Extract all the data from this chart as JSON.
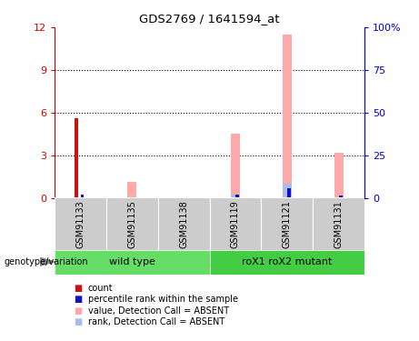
{
  "title": "GDS2769 / 1641594_at",
  "samples": [
    "GSM91133",
    "GSM91135",
    "GSM91138",
    "GSM91119",
    "GSM91121",
    "GSM91131"
  ],
  "count_values": [
    5.6,
    0,
    0,
    0,
    0,
    0
  ],
  "percentile_values": [
    0.25,
    0,
    0,
    0.2,
    0.7,
    0.15
  ],
  "absent_value_values": [
    0,
    1.1,
    0.05,
    4.5,
    11.5,
    3.2
  ],
  "absent_rank_values": [
    0,
    0,
    0,
    0.25,
    1.0,
    0
  ],
  "ylim_left": [
    0,
    12
  ],
  "ylim_right": [
    0,
    100
  ],
  "yticks_left": [
    0,
    3,
    6,
    9,
    12
  ],
  "yticks_right": [
    0,
    25,
    50,
    75,
    100
  ],
  "colors": {
    "count": "#cc1111",
    "percentile": "#1111cc",
    "absent_value": "#ffaaaa",
    "absent_rank": "#aabbee",
    "axis_left": "#cc0000",
    "axis_right": "#0000cc",
    "group_wt": "#66dd66",
    "group_mut": "#44cc44",
    "sample_bg": "#cccccc",
    "spine": "#000000"
  },
  "legend_items": [
    {
      "label": "count",
      "color": "#cc1111"
    },
    {
      "label": "percentile rank within the sample",
      "color": "#1111cc"
    },
    {
      "label": "value, Detection Call = ABSENT",
      "color": "#ffaaaa"
    },
    {
      "label": "rank, Detection Call = ABSENT",
      "color": "#aabbee"
    }
  ]
}
